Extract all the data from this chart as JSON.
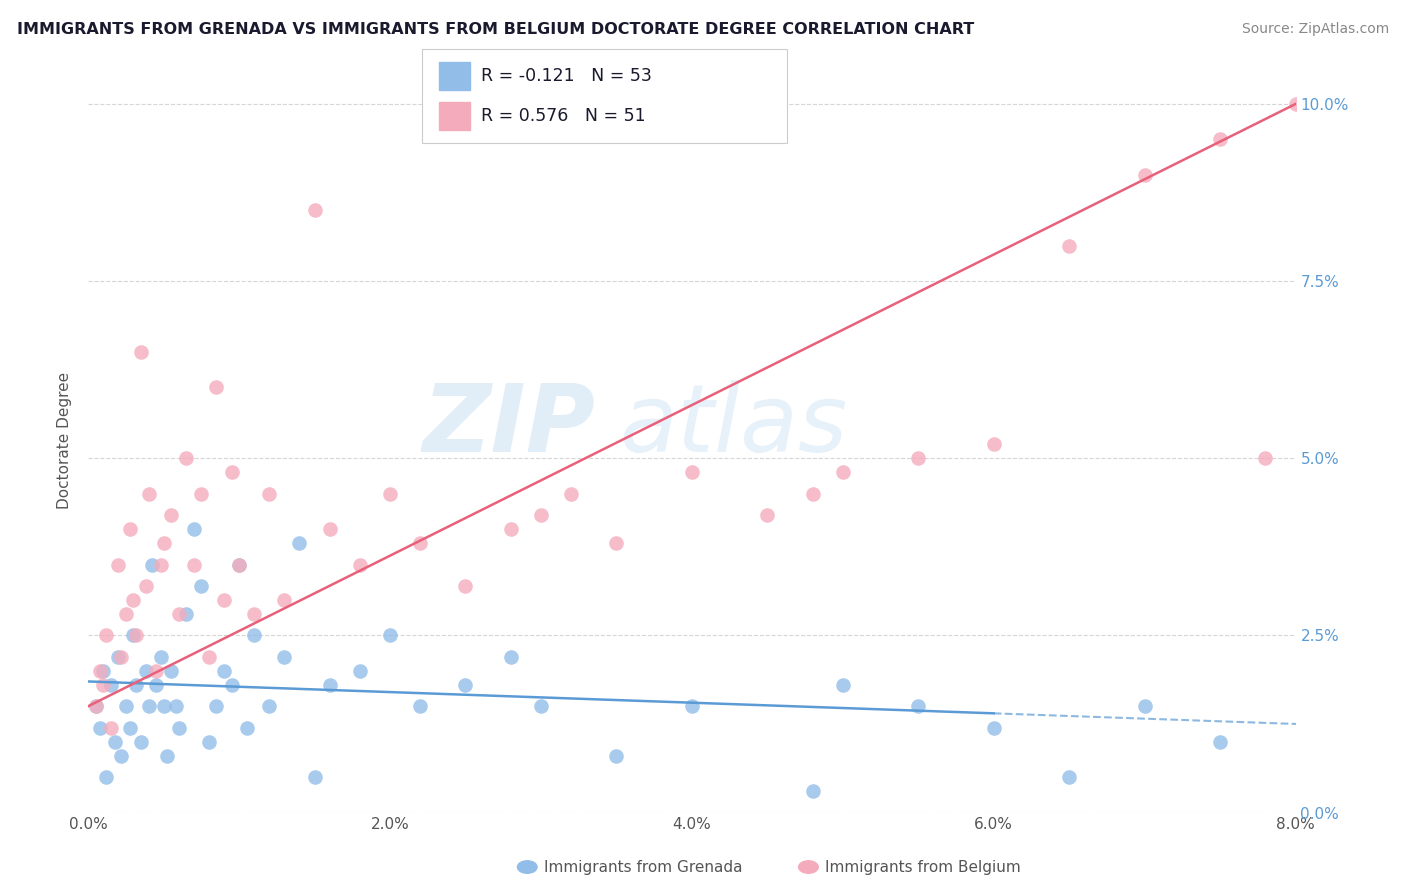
{
  "title": "IMMIGRANTS FROM GRENADA VS IMMIGRANTS FROM BELGIUM DOCTORATE DEGREE CORRELATION CHART",
  "source": "Source: ZipAtlas.com",
  "ylabel": "Doctorate Degree",
  "x_tick_labels": [
    "0.0%",
    "2.0%",
    "4.0%",
    "6.0%",
    "8.0%"
  ],
  "x_ticks": [
    0.0,
    2.0,
    4.0,
    6.0,
    8.0
  ],
  "y_tick_labels_right": [
    "0.0%",
    "2.5%",
    "5.0%",
    "7.5%",
    "10.0%"
  ],
  "y_ticks": [
    0.0,
    2.5,
    5.0,
    7.5,
    10.0
  ],
  "xlim": [
    0.0,
    8.0
  ],
  "ylim": [
    0.0,
    10.5
  ],
  "grenada_R": -0.121,
  "grenada_N": 53,
  "belgium_R": 0.576,
  "belgium_N": 51,
  "grenada_color": "#92BDE8",
  "belgium_color": "#F4ABBC",
  "grenada_line_color": "#5B9BD5",
  "belgium_line_color": "#E8607A",
  "background_color": "#ffffff",
  "grid_color": "#CCCCCC",
  "watermark_zip": "ZIP",
  "watermark_atlas": "atlas",
  "legend_labels": [
    "Immigrants from Grenada",
    "Immigrants from Belgium"
  ],
  "grenada_x": [
    0.05,
    0.08,
    0.1,
    0.12,
    0.15,
    0.18,
    0.2,
    0.22,
    0.25,
    0.28,
    0.3,
    0.32,
    0.35,
    0.38,
    0.4,
    0.42,
    0.45,
    0.48,
    0.5,
    0.52,
    0.55,
    0.58,
    0.6,
    0.65,
    0.7,
    0.75,
    0.8,
    0.85,
    0.9,
    0.95,
    1.0,
    1.05,
    1.1,
    1.2,
    1.3,
    1.4,
    1.5,
    1.6,
    1.8,
    2.0,
    2.2,
    2.5,
    2.8,
    3.0,
    3.5,
    4.0,
    4.8,
    5.0,
    5.5,
    6.0,
    6.5,
    7.0,
    7.5
  ],
  "grenada_y": [
    1.5,
    1.2,
    2.0,
    0.5,
    1.8,
    1.0,
    2.2,
    0.8,
    1.5,
    1.2,
    2.5,
    1.8,
    1.0,
    2.0,
    1.5,
    3.5,
    1.8,
    2.2,
    1.5,
    0.8,
    2.0,
    1.5,
    1.2,
    2.8,
    4.0,
    3.2,
    1.0,
    1.5,
    2.0,
    1.8,
    3.5,
    1.2,
    2.5,
    1.5,
    2.2,
    3.8,
    0.5,
    1.8,
    2.0,
    2.5,
    1.5,
    1.8,
    2.2,
    1.5,
    0.8,
    1.5,
    0.3,
    1.8,
    1.5,
    1.2,
    0.5,
    1.5,
    1.0
  ],
  "belgium_x": [
    0.05,
    0.08,
    0.1,
    0.12,
    0.15,
    0.2,
    0.22,
    0.25,
    0.28,
    0.3,
    0.32,
    0.35,
    0.38,
    0.4,
    0.45,
    0.48,
    0.5,
    0.55,
    0.6,
    0.65,
    0.7,
    0.75,
    0.8,
    0.85,
    0.9,
    0.95,
    1.0,
    1.1,
    1.2,
    1.3,
    1.5,
    1.6,
    1.8,
    2.0,
    2.2,
    2.5,
    2.8,
    3.0,
    3.2,
    3.5,
    4.0,
    4.5,
    4.8,
    5.0,
    5.5,
    6.0,
    6.5,
    7.0,
    7.5,
    7.8,
    8.0
  ],
  "belgium_y": [
    1.5,
    2.0,
    1.8,
    2.5,
    1.2,
    3.5,
    2.2,
    2.8,
    4.0,
    3.0,
    2.5,
    6.5,
    3.2,
    4.5,
    2.0,
    3.5,
    3.8,
    4.2,
    2.8,
    5.0,
    3.5,
    4.5,
    2.2,
    6.0,
    3.0,
    4.8,
    3.5,
    2.8,
    4.5,
    3.0,
    8.5,
    4.0,
    3.5,
    4.5,
    3.8,
    3.2,
    4.0,
    4.2,
    4.5,
    3.8,
    4.8,
    4.2,
    4.5,
    4.8,
    5.0,
    5.2,
    8.0,
    9.0,
    9.5,
    5.0,
    10.0
  ],
  "grenada_line_x0": 0.0,
  "grenada_line_x1": 8.0,
  "grenada_line_y0": 1.85,
  "grenada_line_y1": 1.25,
  "belgium_line_x0": 0.0,
  "belgium_line_x1": 8.0,
  "belgium_line_y0": 1.5,
  "belgium_line_y1": 10.0
}
